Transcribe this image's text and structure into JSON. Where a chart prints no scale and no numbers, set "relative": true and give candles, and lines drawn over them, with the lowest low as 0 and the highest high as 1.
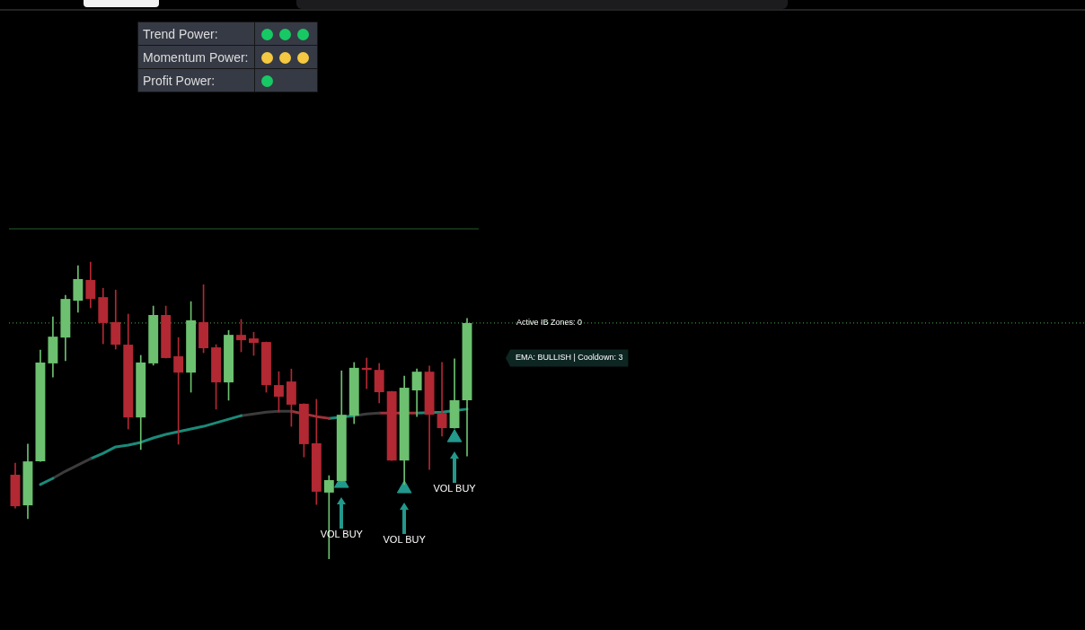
{
  "chart_data": [
    {
      "type": "other",
      "annotations": [
        "Trend Power:",
        "Momentum Power:",
        "Profit Power:"
      ]
    },
    {
      "type": "candlestick",
      "relative": true,
      "tick_labels": false,
      "categories": [
        null,
        null,
        null,
        null,
        null,
        null,
        null,
        null,
        null,
        null,
        null,
        null,
        null,
        null,
        null,
        null,
        null,
        null,
        null,
        null,
        null,
        null,
        null,
        null,
        null,
        null,
        null,
        null,
        null,
        null,
        null,
        null,
        null,
        null,
        null,
        null,
        null
      ],
      "ohlc": [
        [
          0.284,
          0.323,
          0.172,
          0.178
        ],
        [
          0.181,
          0.387,
          0.136,
          0.329
        ],
        [
          0.329,
          0.704,
          0.329,
          0.662
        ],
        [
          0.659,
          0.816,
          0.613,
          0.749
        ],
        [
          0.746,
          0.888,
          0.668,
          0.876
        ],
        [
          0.87,
          0.988,
          0.831,
          0.943
        ],
        [
          0.94,
          1,
          0.846,
          0.876
        ],
        [
          0.882,
          0.912,
          0.725,
          0.795
        ],
        [
          0.798,
          0.906,
          0.707,
          0.722
        ],
        [
          0.722,
          0.825,
          0.438,
          0.477
        ],
        [
          0.477,
          0.686,
          0.369,
          0.662
        ],
        [
          0.659,
          0.852,
          0.653,
          0.822
        ],
        [
          0.822,
          0.852,
          0.677,
          0.677
        ],
        [
          0.683,
          0.746,
          0.387,
          0.628
        ],
        [
          0.628,
          0.867,
          0.562,
          0.804
        ],
        [
          0.798,
          0.924,
          0.695,
          0.71
        ],
        [
          0.713,
          0.722,
          0.505,
          0.595
        ],
        [
          0.595,
          0.77,
          0.535,
          0.755
        ],
        [
          0.755,
          0.807,
          0.698,
          0.737
        ],
        [
          0.743,
          0.764,
          0.686,
          0.728
        ],
        [
          0.731,
          0.731,
          0.562,
          0.586
        ],
        [
          0.586,
          0.631,
          0.495,
          0.547
        ],
        [
          0.598,
          0.64,
          0.447,
          0.52
        ],
        [
          0.523,
          0.523,
          0.344,
          0.387
        ],
        [
          0.39,
          0.538,
          0.184,
          0.227
        ],
        [
          0.224,
          0.281,
          0,
          0.266
        ],
        [
          0.263,
          0.634,
          0.263,
          0.486
        ],
        [
          0.483,
          0.662,
          0.456,
          0.644
        ],
        [
          0.644,
          0.677,
          0.574,
          0.637
        ],
        [
          0.637,
          0.659,
          0.526,
          0.562
        ],
        [
          0.565,
          0.565,
          0.332,
          0.332
        ],
        [
          0.332,
          0.616,
          0.251,
          0.577
        ],
        [
          0.568,
          0.64,
          0.48,
          0.631
        ],
        [
          0.631,
          0.65,
          0.302,
          0.486
        ],
        [
          0.492,
          0.662,
          0.414,
          0.441
        ],
        [
          0.441,
          0.674,
          0.441,
          0.535
        ],
        [
          0.535,
          0.81,
          0.347,
          0.795
        ]
      ],
      "colors": [
        "#b22833",
        "#6cc070",
        "#6cc070",
        "#6cc070",
        "#6cc070",
        "#6cc070",
        "#b22833",
        "#b22833",
        "#b22833",
        "#b22833",
        "#6cc070",
        "#6cc070",
        "#b22833",
        "#b22833",
        "#6cc070",
        "#b22833",
        "#b22833",
        "#6cc070",
        "#b22833",
        "#b22833",
        "#b22833",
        "#b22833",
        "#b22833",
        "#b22833",
        "#b22833",
        "#6cc070",
        "#6cc070",
        "#6cc070",
        "#b22833",
        "#b22833",
        "#b22833",
        "#6cc070",
        "#6cc070",
        "#b22833",
        "#b22833",
        "#6cc070",
        "#6cc070"
      ],
      "series": [
        {
          "type": "line",
          "color": "#1b8a7a",
          "values": [
            null,
            null,
            0.251,
            0.272,
            null,
            null,
            null,
            null,
            null,
            null,
            null,
            null,
            null,
            null,
            null,
            null,
            null,
            null,
            null,
            null,
            null,
            null,
            null,
            null,
            null,
            null,
            null,
            null,
            null,
            null,
            null,
            null,
            null,
            null,
            null,
            null,
            null
          ]
        },
        {
          "type": "line",
          "color": "#3c3c3c",
          "values": [
            null,
            null,
            null,
            0.272,
            0.296,
            0.317,
            0.338,
            null,
            null,
            null,
            null,
            null,
            null,
            null,
            null,
            null,
            null,
            null,
            null,
            null,
            null,
            null,
            null,
            null,
            null,
            null,
            null,
            null,
            null,
            null,
            null,
            null,
            null,
            null,
            null,
            null,
            null
          ]
        },
        {
          "type": "line",
          "color": "#1b8a7a",
          "values": [
            null,
            null,
            null,
            null,
            null,
            null,
            0.338,
            0.356,
            0.378,
            0.384,
            0.393,
            0.408,
            0.42,
            0.429,
            0.438,
            0.447,
            0.459,
            0.471,
            0.483,
            null,
            null,
            null,
            null,
            null,
            null,
            null,
            null,
            null,
            null,
            null,
            null,
            null,
            null,
            null,
            null,
            null,
            null
          ]
        },
        {
          "type": "line",
          "color": "#3c3c3c",
          "values": [
            null,
            null,
            null,
            null,
            null,
            null,
            null,
            null,
            null,
            null,
            null,
            null,
            null,
            null,
            null,
            null,
            null,
            null,
            0.483,
            0.489,
            0.495,
            0.498,
            0.498,
            null,
            null,
            null,
            null,
            null,
            null,
            null,
            null,
            null,
            null,
            null,
            null,
            null,
            null
          ]
        },
        {
          "type": "line",
          "color": "#a0323a",
          "values": [
            null,
            null,
            null,
            null,
            null,
            null,
            null,
            null,
            null,
            null,
            null,
            null,
            null,
            null,
            null,
            null,
            null,
            null,
            null,
            null,
            null,
            null,
            0.498,
            null,
            0.48,
            0.474,
            null,
            null,
            null,
            null,
            null,
            null,
            null,
            null,
            null,
            null,
            null
          ]
        },
        {
          "type": "line",
          "color": "#1b8a7a",
          "values": [
            null,
            null,
            null,
            null,
            null,
            null,
            null,
            null,
            null,
            null,
            null,
            null,
            null,
            null,
            null,
            null,
            null,
            null,
            null,
            null,
            null,
            null,
            null,
            null,
            null,
            0.474,
            null,
            0.483,
            null,
            null,
            null,
            null,
            null,
            null,
            null,
            null,
            null
          ]
        },
        {
          "type": "line",
          "color": "#3c3c3c",
          "values": [
            null,
            null,
            null,
            null,
            null,
            null,
            null,
            null,
            null,
            null,
            null,
            null,
            null,
            null,
            null,
            null,
            null,
            null,
            null,
            null,
            null,
            null,
            null,
            null,
            null,
            null,
            null,
            0.483,
            0.489,
            0.492,
            null,
            null,
            null,
            null,
            null,
            null,
            null
          ]
        },
        {
          "type": "line",
          "color": "#a0323a",
          "values": [
            null,
            null,
            null,
            null,
            null,
            null,
            null,
            null,
            null,
            null,
            null,
            null,
            null,
            null,
            null,
            null,
            null,
            null,
            null,
            null,
            null,
            null,
            null,
            null,
            null,
            null,
            null,
            null,
            null,
            0.492,
            null,
            null,
            0.492,
            null,
            null,
            null,
            null
          ]
        },
        {
          "type": "line",
          "color": "#1b8a7a",
          "values": [
            null,
            null,
            null,
            null,
            null,
            null,
            null,
            null,
            null,
            null,
            null,
            null,
            null,
            null,
            null,
            null,
            null,
            null,
            null,
            null,
            null,
            null,
            null,
            null,
            null,
            null,
            null,
            null,
            null,
            null,
            null,
            null,
            0.492,
            null,
            0.495,
            null,
            0.505
          ]
        },
        {
          "type": "scatter",
          "color": "#22998c",
          "marker": "triangle",
          "values": [
            null,
            null,
            null,
            null,
            null,
            null,
            null,
            null,
            null,
            null,
            null,
            null,
            null,
            null,
            null,
            null,
            null,
            null,
            null,
            null,
            null,
            null,
            null,
            null,
            null,
            null,
            0.255,
            null,
            null,
            null,
            null,
            0.237,
            null,
            null,
            null,
            0.409,
            null
          ]
        }
      ],
      "ref_lines": [
        {
          "axis": "y",
          "value": 1.112,
          "color": "#1e5e2a"
        },
        {
          "axis": "y",
          "value": 0.795,
          "color": "#4caf50",
          "line_style": "dotted"
        }
      ],
      "annotations": [
        "Active IB Zones: 0",
        "EMA: BULLISH | Cooldown: 3",
        "VOL BUY",
        "VOL BUY",
        "VOL BUY"
      ]
    }
  ]
}
